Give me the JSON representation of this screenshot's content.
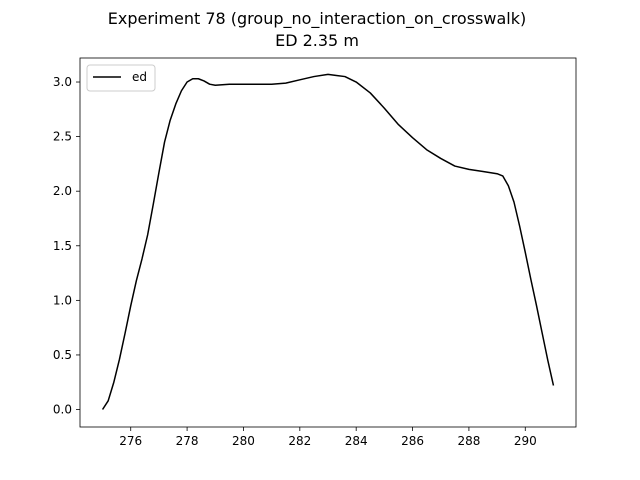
{
  "chart_data": {
    "type": "line",
    "title": "Experiment 78 (group_no_interaction_on_crosswalk)",
    "subtitle": "ED 2.35 m",
    "xlabel": "",
    "ylabel": "",
    "xlim": [
      274.2,
      291.8
    ],
    "ylim": [
      -0.16,
      3.22
    ],
    "x_ticks": [
      276,
      278,
      280,
      282,
      284,
      286,
      288,
      290
    ],
    "y_ticks": [
      0.0,
      0.5,
      1.0,
      1.5,
      2.0,
      2.5,
      3.0
    ],
    "x_tick_labels": [
      "276",
      "278",
      "280",
      "282",
      "284",
      "286",
      "288",
      "290"
    ],
    "y_tick_labels": [
      "0.0",
      "0.5",
      "1.0",
      "1.5",
      "2.0",
      "2.5",
      "3.0"
    ],
    "grid": false,
    "legend": {
      "position": "top-left",
      "entries": [
        "ed"
      ]
    },
    "series": [
      {
        "name": "ed",
        "color": "#000000",
        "x": [
          275.0,
          275.2,
          275.4,
          275.6,
          275.8,
          276.0,
          276.2,
          276.4,
          276.6,
          276.8,
          277.0,
          277.2,
          277.4,
          277.6,
          277.8,
          278.0,
          278.2,
          278.4,
          278.6,
          278.8,
          279.0,
          279.5,
          280.0,
          280.5,
          281.0,
          281.5,
          282.0,
          282.5,
          283.0,
          283.3,
          283.6,
          284.0,
          284.5,
          285.0,
          285.5,
          286.0,
          286.5,
          287.0,
          287.5,
          288.0,
          288.5,
          289.0,
          289.2,
          289.4,
          289.6,
          289.8,
          290.0,
          290.2,
          290.4,
          290.6,
          290.8,
          291.0
        ],
        "values": [
          0.0,
          0.08,
          0.25,
          0.46,
          0.7,
          0.95,
          1.18,
          1.38,
          1.6,
          1.88,
          2.17,
          2.45,
          2.65,
          2.8,
          2.92,
          3.0,
          3.03,
          3.03,
          3.01,
          2.98,
          2.97,
          2.98,
          2.98,
          2.98,
          2.98,
          2.99,
          3.02,
          3.05,
          3.07,
          3.06,
          3.05,
          3.0,
          2.9,
          2.76,
          2.61,
          2.49,
          2.38,
          2.3,
          2.23,
          2.2,
          2.18,
          2.16,
          2.14,
          2.05,
          1.9,
          1.68,
          1.44,
          1.19,
          0.95,
          0.7,
          0.45,
          0.22
        ]
      }
    ]
  }
}
